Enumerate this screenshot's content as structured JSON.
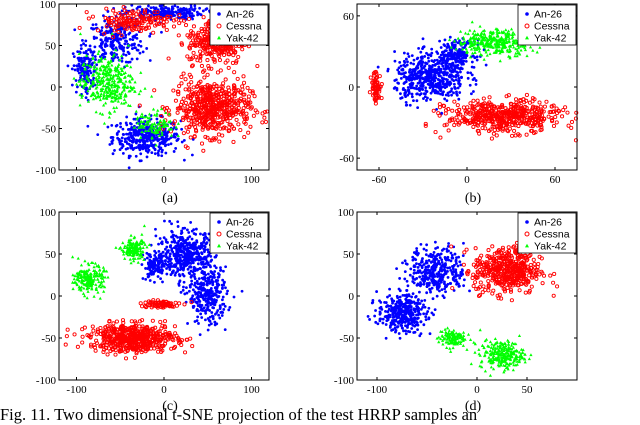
{
  "caption": "Fig. 11.   Two dimensional t-SNE projection of the test HRRP samples an",
  "chart_data": [
    {
      "type": "scatter",
      "label": "(a)",
      "xlim": [
        -120,
        120
      ],
      "ylim": [
        -100,
        100
      ],
      "xticks": [
        -100,
        0,
        100
      ],
      "yticks": [
        -100,
        -50,
        0,
        50,
        100
      ],
      "legend_position": "top-right",
      "series": [
        {
          "name": "An-26",
          "color": "#0000ff",
          "marker": "dot",
          "clusters": [
            [
              -20,
              -60,
              35,
              20,
              400
            ],
            [
              -55,
              55,
              30,
              25,
              250
            ],
            [
              0,
              90,
              40,
              8,
              200
            ],
            [
              -90,
              20,
              12,
              25,
              150
            ]
          ]
        },
        {
          "name": "Cessna",
          "color": "#ff0000",
          "marker": "circle",
          "clusters": [
            [
              55,
              -25,
              40,
              30,
              550
            ],
            [
              60,
              55,
              30,
              25,
              300
            ],
            [
              -35,
              80,
              40,
              12,
              150
            ]
          ]
        },
        {
          "name": "Yak-42",
          "color": "#00ff00",
          "marker": "triangle",
          "clusters": [
            [
              -65,
              5,
              28,
              30,
              350
            ],
            [
              -10,
              -45,
              20,
              15,
              100
            ]
          ]
        }
      ]
    },
    {
      "type": "scatter",
      "label": "(b)",
      "xlim": [
        -75,
        75
      ],
      "ylim": [
        -70,
        70
      ],
      "xticks": [
        -60,
        0,
        60
      ],
      "yticks": [
        -60,
        0,
        60
      ],
      "legend_position": "top-right",
      "series": [
        {
          "name": "An-26",
          "color": "#0000ff",
          "marker": "dot",
          "clusters": [
            [
              -25,
              8,
              22,
              18,
              500
            ],
            [
              -8,
              28,
              12,
              10,
              200
            ]
          ]
        },
        {
          "name": "Cessna",
          "color": "#ff0000",
          "marker": "circle",
          "clusters": [
            [
              25,
              -25,
              35,
              12,
              500
            ],
            [
              -62,
              0,
              3,
              12,
              60
            ]
          ]
        },
        {
          "name": "Yak-42",
          "color": "#00ff00",
          "marker": "triangle",
          "clusters": [
            [
              20,
              38,
              24,
              10,
              350
            ]
          ]
        }
      ]
    },
    {
      "type": "scatter",
      "label": "(c)",
      "xlim": [
        -120,
        120
      ],
      "ylim": [
        -100,
        100
      ],
      "xticks": [
        -100,
        0,
        100
      ],
      "yticks": [
        -100,
        -50,
        0,
        50,
        100
      ],
      "legend_position": "top-right",
      "series": [
        {
          "name": "An-26",
          "color": "#0000ff",
          "marker": "dot",
          "clusters": [
            [
              25,
              50,
              30,
              25,
              450
            ],
            [
              50,
              0,
              20,
              30,
              300
            ],
            [
              -10,
              35,
              12,
              15,
              120
            ]
          ]
        },
        {
          "name": "Cessna",
          "color": "#ff0000",
          "marker": "circle",
          "clusters": [
            [
              -35,
              -50,
              45,
              15,
              550
            ],
            [
              -5,
              -10,
              20,
              4,
              80
            ]
          ]
        },
        {
          "name": "Yak-42",
          "color": "#00ff00",
          "marker": "triangle",
          "clusters": [
            [
              -85,
              20,
              15,
              15,
              200
            ],
            [
              -35,
              55,
              12,
              12,
              150
            ]
          ]
        }
      ]
    },
    {
      "type": "scatter",
      "label": "(d)",
      "xlim": [
        -120,
        100
      ],
      "ylim": [
        -100,
        100
      ],
      "xticks": [
        -100,
        0,
        50
      ],
      "yticks": [
        -100,
        -50,
        0,
        50,
        100
      ],
      "legend_position": "top-right",
      "series": [
        {
          "name": "An-26",
          "color": "#0000ff",
          "marker": "dot",
          "clusters": [
            [
              -75,
              -20,
              22,
              20,
              350
            ],
            [
              -40,
              30,
              25,
              25,
              350
            ]
          ]
        },
        {
          "name": "Cessna",
          "color": "#ff0000",
          "marker": "circle",
          "clusters": [
            [
              30,
              30,
              30,
              25,
              450
            ],
            [
              70,
              75,
              8,
              10,
              60
            ]
          ]
        },
        {
          "name": "Yak-42",
          "color": "#00ff00",
          "marker": "triangle",
          "clusters": [
            [
              25,
              -70,
              20,
              15,
              250
            ],
            [
              -25,
              -50,
              12,
              10,
              120
            ]
          ]
        }
      ]
    }
  ]
}
